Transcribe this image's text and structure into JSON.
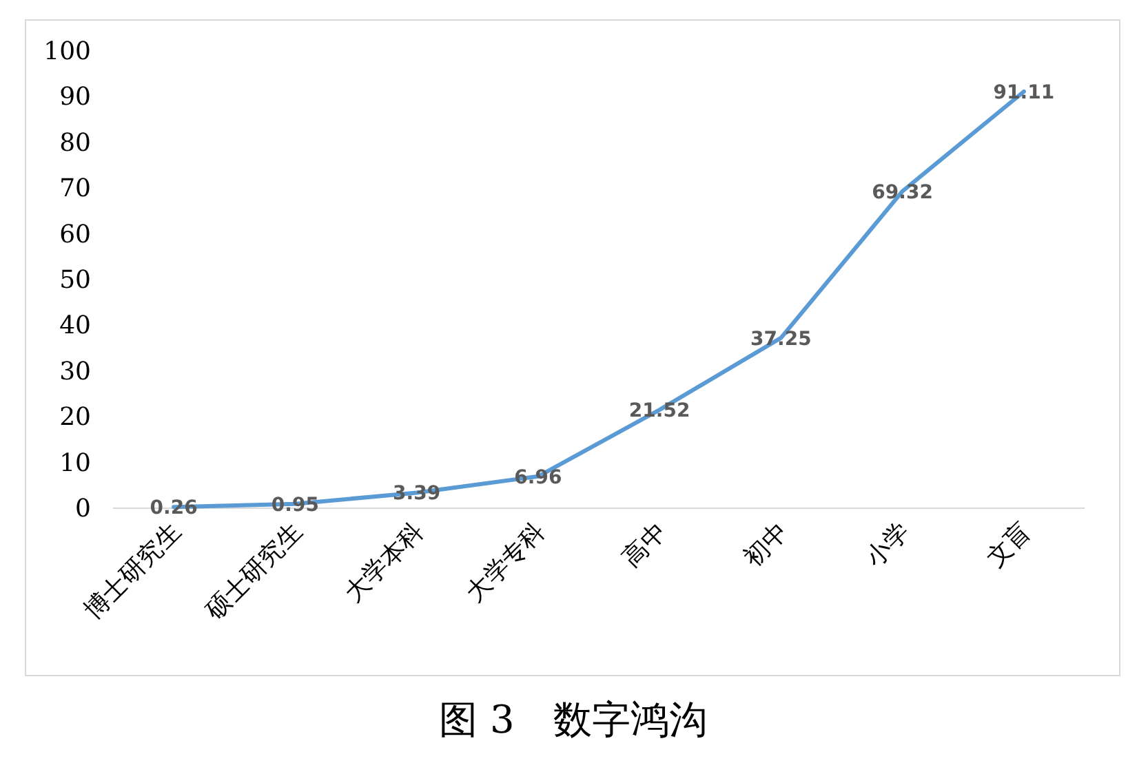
{
  "chart_data": {
    "type": "line",
    "title": "图 3　数字鸿沟",
    "categories": [
      "博士研究生",
      "硕士研究生",
      "大学本科",
      "大学专科",
      "高中",
      "初中",
      "小学",
      "文盲"
    ],
    "values": [
      0.26,
      0.95,
      3.39,
      6.96,
      21.52,
      37.25,
      69.32,
      91.11
    ],
    "color": "#5b9bd5",
    "data_labels": true,
    "ylim": [
      0,
      100
    ],
    "yticks": [
      0,
      10,
      20,
      30,
      40,
      50,
      60,
      70,
      80,
      90,
      100
    ]
  }
}
